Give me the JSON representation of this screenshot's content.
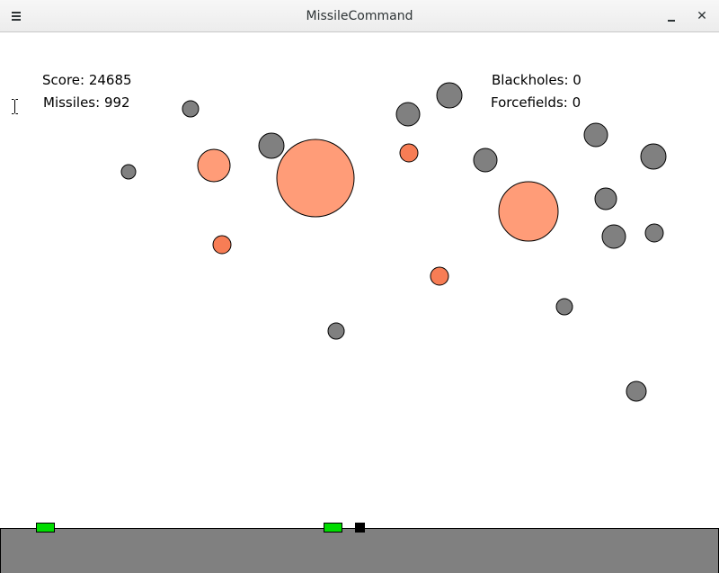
{
  "window": {
    "title": "MissileCommand",
    "menu_icon": "hamburger-menu-icon",
    "minimize_icon": "minimize-icon",
    "close_label": "✕"
  },
  "hud": {
    "score": "Score: 24685",
    "missiles": "Missiles: 992",
    "blackholes": "Blackholes: 0",
    "forcefields": "Forcefields: 0"
  },
  "colors": {
    "asteroid": "#808080",
    "explosion_large": "#ff9c78",
    "explosion_small": "#f77d55",
    "ground": "#808080",
    "base": "#00dd00",
    "launcher": "#000000"
  }
}
